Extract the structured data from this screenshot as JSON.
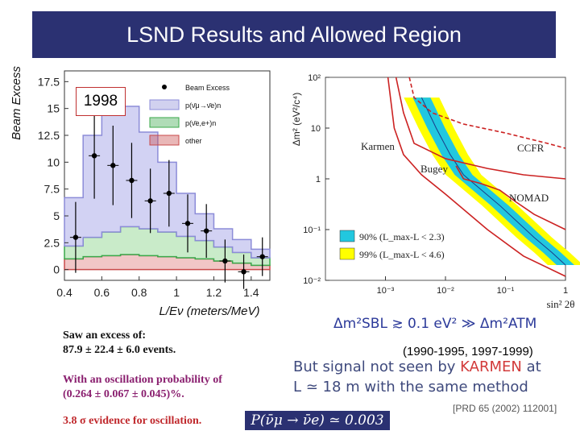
{
  "title": "LSND Results and Allowed Region",
  "year_label": "1998",
  "chart_data": [
    {
      "type": "bar",
      "title": "",
      "xlabel": "L/Eν (meters/MeV)",
      "ylabel": "Beam Excess",
      "xlim": [
        0.4,
        1.5
      ],
      "ylim": [
        -1,
        18.5
      ],
      "x_ticks": [
        "0.4",
        "0.6",
        "0.8",
        "1",
        "1.2",
        "1.4"
      ],
      "x_tick_values": [
        0.4,
        0.6,
        0.8,
        1.0,
        1.2,
        1.4
      ],
      "y_ticks": [
        "0",
        "2.5",
        "5",
        "7.5",
        "10",
        "12.5",
        "15",
        "17.5"
      ],
      "y_tick_values": [
        0,
        2.5,
        5,
        7.5,
        10,
        12.5,
        15,
        17.5
      ],
      "legend": [
        "Beam Excess",
        "p(ν̄μ→ν̄e)n",
        "p(ν̄e,e+)n",
        "other"
      ],
      "legend_colors": [
        "#000000",
        "#8c8cd8",
        "#3aa84a",
        "#c94a4a"
      ],
      "bin_edges": [
        0.4,
        0.5,
        0.6,
        0.7,
        0.8,
        0.9,
        1.0,
        1.1,
        1.2,
        1.3,
        1.4,
        1.5
      ],
      "series": [
        {
          "name": "other",
          "values": [
            1.0,
            1.2,
            1.3,
            1.4,
            1.3,
            1.2,
            1.1,
            1.0,
            0.8,
            0.6,
            0.4
          ]
        },
        {
          "name": "p(ν̄e,e+)n",
          "values": [
            1.2,
            1.8,
            2.2,
            2.6,
            2.5,
            2.3,
            2.0,
            1.7,
            1.3,
            1.0,
            0.7
          ]
        },
        {
          "name": "p(ν̄μ→ν̄e)n",
          "values": [
            4.5,
            9.5,
            11.5,
            11.2,
            9.0,
            6.5,
            4.0,
            2.5,
            1.7,
            1.2,
            0.8
          ]
        }
      ],
      "points": [
        {
          "x": 0.46,
          "y": 3.0,
          "err": 3.3
        },
        {
          "x": 0.56,
          "y": 10.6,
          "err": 4.0
        },
        {
          "x": 0.66,
          "y": 9.7,
          "err": 3.7
        },
        {
          "x": 0.76,
          "y": 8.3,
          "err": 3.5
        },
        {
          "x": 0.86,
          "y": 6.4,
          "err": 3.0
        },
        {
          "x": 0.96,
          "y": 7.1,
          "err": 3.1
        },
        {
          "x": 1.06,
          "y": 4.3,
          "err": 2.7
        },
        {
          "x": 1.16,
          "y": 3.6,
          "err": 2.5
        },
        {
          "x": 1.26,
          "y": 0.8,
          "err": 2.0
        },
        {
          "x": 1.36,
          "y": -0.2,
          "err": 1.6
        },
        {
          "x": 1.46,
          "y": 1.2,
          "err": 1.8
        }
      ]
    },
    {
      "type": "line",
      "title": "",
      "xlabel": "sin² 2θ",
      "ylabel": "Δm² (eV²/c⁴)",
      "x_scale": "log",
      "y_scale": "log",
      "xlim": [
        0.0001,
        1
      ],
      "ylim": [
        0.01,
        100
      ],
      "x_ticks": [
        "10⁻³",
        "10⁻²",
        "10⁻¹",
        "1"
      ],
      "x_tick_values": [
        0.001,
        0.01,
        0.1,
        1
      ],
      "y_ticks": [
        "10⁻²",
        "10⁻¹",
        "1",
        "10",
        "10²"
      ],
      "y_tick_values": [
        0.01,
        0.1,
        1,
        10,
        100
      ],
      "legend": [
        "90% (L_max-L < 2.3)",
        "99% (L_max-L < 4.6)"
      ],
      "legend_colors": [
        "#22c7df",
        "#ffff00"
      ],
      "curve_labels": [
        "Karmen",
        "Bugey",
        "CCFR",
        "NOMAD"
      ],
      "curve_colors": [
        "#cc2222",
        "#cc2222",
        "#cc2222",
        "#cc2222"
      ],
      "band_center": {
        "x": [
          0.004,
          0.007,
          0.012,
          0.02,
          0.04,
          0.08,
          0.15,
          0.3,
          0.6,
          1.0
        ],
        "y": [
          40,
          10,
          3.0,
          1.2,
          0.6,
          0.3,
          0.15,
          0.07,
          0.035,
          0.02
        ]
      },
      "karmen": {
        "x": [
          0.0011,
          0.0014,
          0.002,
          0.004,
          0.01,
          0.05,
          0.2,
          1.0
        ],
        "y": [
          100,
          10,
          3,
          1.2,
          0.5,
          0.1,
          0.03,
          0.012
        ]
      },
      "bugey": {
        "x": [
          0.015,
          0.02,
          0.04,
          0.08,
          0.15,
          0.3,
          1.0
        ],
        "y": [
          1.8,
          1.0,
          0.8,
          0.6,
          0.35,
          0.2,
          0.1
        ]
      },
      "ccfr": {
        "x": [
          0.0025,
          0.003,
          0.006,
          0.02,
          0.1,
          0.5,
          1.0
        ],
        "y": [
          100,
          40,
          20,
          12,
          8,
          5,
          4
        ]
      },
      "nomad": {
        "x": [
          0.0015,
          0.002,
          0.003,
          0.01,
          0.05,
          0.2,
          1.0
        ],
        "y": [
          100,
          20,
          5,
          2.5,
          1.6,
          1.2,
          1.0
        ]
      }
    }
  ],
  "notes": {
    "line1": "Saw an excess of:",
    "line2": "87.9 ± 22.4 ± 6.0 events.",
    "line3": "With an oscillation probability of",
    "line4": "(0.264 ± 0.067 ± 0.045)%.",
    "line5": "3.8 σ evidence for oscillation."
  },
  "dm_formula": "Δm²SBL ≳ 0.1 eV² ≫ Δm²ATM",
  "dates": "(1990-1995, 1997-1999)",
  "karmen_text": {
    "part1": "But signal not seen by ",
    "name": "KARMEN",
    "part2": " at",
    "line2": "L ≃ 18 m with the same method"
  },
  "probability": "P(ν̄μ → ν̄e) ≃ 0.003",
  "reference": "[PRD 65 (2002) 112001]"
}
